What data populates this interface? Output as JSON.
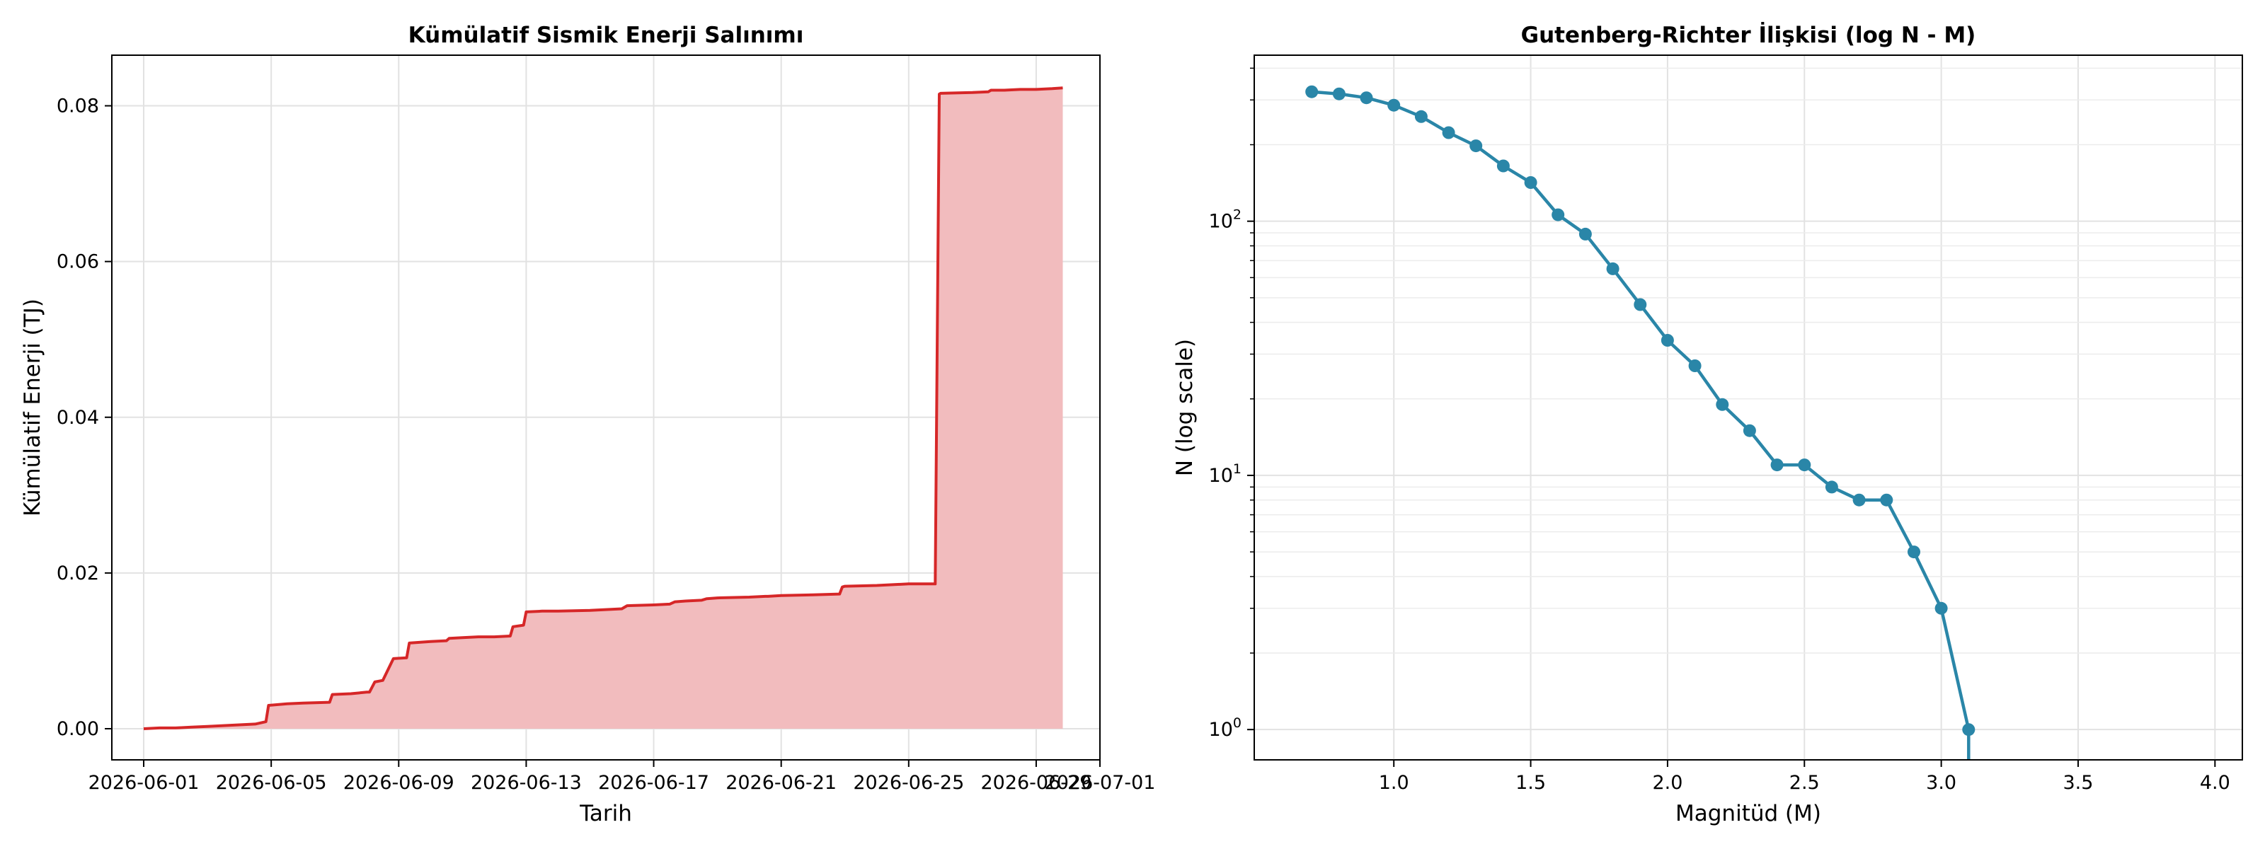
{
  "chart_data": [
    {
      "type": "area",
      "title": "Kümülatif Sismik Enerji Salınımı",
      "xlabel": "Tarih",
      "ylabel": "Kümülatif Enerji (TJ)",
      "xlim": [
        "2026-05-31",
        "2026-07-01"
      ],
      "ylim": [
        -0.004,
        0.0865
      ],
      "x_ticks": [
        "2026-06-01",
        "2026-06-05",
        "2026-06-09",
        "2026-06-13",
        "2026-06-17",
        "2026-06-21",
        "2026-06-25",
        "2026-06-29",
        "2026-07-01"
      ],
      "y_ticks": [
        "0.00",
        "0.02",
        "0.04",
        "0.06",
        "0.08"
      ],
      "grid": true,
      "line_color": "#d62728",
      "fill_color": "#f2bcbe",
      "x": [
        "2026-06-01",
        "2026-06-01T12:00",
        "2026-06-02",
        "2026-06-02T12:00",
        "2026-06-03",
        "2026-06-03T12:00",
        "2026-06-04",
        "2026-06-04T12:00",
        "2026-06-04T20:00",
        "2026-06-04T22:00",
        "2026-06-05T12:00",
        "2026-06-06",
        "2026-06-06T20:00",
        "2026-06-06T22:00",
        "2026-06-07T12:00",
        "2026-06-08",
        "2026-06-08T02:00",
        "2026-06-08T06:00",
        "2026-06-08T12:00",
        "2026-06-08T20:00",
        "2026-06-09T06:00",
        "2026-06-09T08:00",
        "2026-06-10",
        "2026-06-10T12:00",
        "2026-06-10T14:00",
        "2026-06-11",
        "2026-06-11T12:00",
        "2026-06-12",
        "2026-06-12T12:00",
        "2026-06-12T14:00",
        "2026-06-12T22:00",
        "2026-06-13",
        "2026-06-13T12:00",
        "2026-06-14",
        "2026-06-15",
        "2026-06-15T12:00",
        "2026-06-16",
        "2026-06-16T04:00",
        "2026-06-17",
        "2026-06-17T12:00",
        "2026-06-17T16:00",
        "2026-06-18",
        "2026-06-18T12:00",
        "2026-06-18T16:00",
        "2026-06-19",
        "2026-06-20",
        "2026-06-20T12:00",
        "2026-06-20T14:00",
        "2026-06-21",
        "2026-06-22",
        "2026-06-22T20:00",
        "2026-06-22T22:00",
        "2026-06-23",
        "2026-06-24",
        "2026-06-25",
        "2026-06-25T20:00",
        "2026-06-25T23:00",
        "2026-06-26",
        "2026-06-27",
        "2026-06-27T12:00",
        "2026-06-27T14:00",
        "2026-06-28",
        "2026-06-28T12:00",
        "2026-06-29",
        "2026-06-29T12:00",
        "2026-06-29T20:00"
      ],
      "y": [
        0.0,
        0.0001,
        0.0001,
        0.0002,
        0.0003,
        0.0004,
        0.0005,
        0.0006,
        0.0009,
        0.003,
        0.0032,
        0.0033,
        0.0034,
        0.0044,
        0.0045,
        0.0047,
        0.0047,
        0.006,
        0.0062,
        0.009,
        0.0091,
        0.011,
        0.0112,
        0.0113,
        0.0116,
        0.0117,
        0.0118,
        0.0118,
        0.0119,
        0.0131,
        0.0133,
        0.015,
        0.0151,
        0.0151,
        0.0152,
        0.0153,
        0.0154,
        0.0158,
        0.0159,
        0.016,
        0.0163,
        0.0164,
        0.0165,
        0.0167,
        0.0168,
        0.0169,
        0.017,
        0.017,
        0.0171,
        0.0172,
        0.0173,
        0.0182,
        0.0183,
        0.0184,
        0.0186,
        0.0186,
        0.0815,
        0.0816,
        0.0817,
        0.0818,
        0.082,
        0.082,
        0.0821,
        0.0821,
        0.0822,
        0.0823
      ]
    },
    {
      "type": "line",
      "title": "Gutenberg-Richter İlişkisi (log N - M)",
      "xlabel": "Magnitüd (M)",
      "ylabel": "N (log scale)",
      "xlim": [
        0.49,
        4.1
      ],
      "ylim": [
        0.76,
        450
      ],
      "y_scale": "log",
      "x_ticks": [
        "1.0",
        "1.5",
        "2.0",
        "2.5",
        "3.0",
        "3.5",
        "4.0"
      ],
      "y_tick_labels": [
        {
          "base": "10",
          "exp": "0"
        },
        {
          "base": "10",
          "exp": "1"
        },
        {
          "base": "10",
          "exp": "2"
        }
      ],
      "grid": true,
      "line_color": "#2a86a8",
      "x": [
        0.7,
        0.8,
        0.9,
        1.0,
        1.1,
        1.2,
        1.3,
        1.4,
        1.5,
        1.6,
        1.7,
        1.8,
        1.9,
        2.0,
        2.1,
        2.2,
        2.3,
        2.4,
        2.5,
        2.6,
        2.7,
        2.8,
        2.9,
        3.0,
        3.1
      ],
      "y": [
        323,
        317,
        306,
        286,
        258,
        223,
        198,
        165,
        142,
        106,
        89,
        65,
        47,
        34,
        27,
        19,
        15,
        11,
        11,
        9,
        8,
        8,
        5,
        3,
        1
      ]
    }
  ]
}
